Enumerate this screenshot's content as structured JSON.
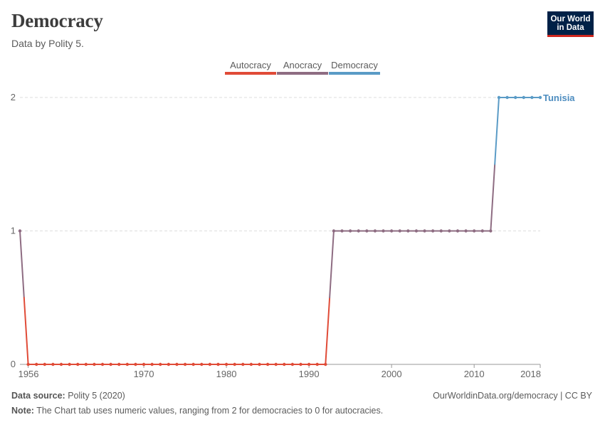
{
  "header": {
    "title": "Democracy",
    "subtitle": "Data by Polity 5."
  },
  "logo": {
    "line1": "Our World",
    "line2": "in Data"
  },
  "colors": {
    "autocracy": "#e04b37",
    "anocracy": "#8e6c82",
    "democracy": "#5a9bc6",
    "grid": "#dddddd",
    "axis": "#999999"
  },
  "chart_data": {
    "type": "line",
    "title": "Democracy",
    "xlabel": "",
    "ylabel": "",
    "xlim": [
      1955,
      2018
    ],
    "ylim": [
      0,
      2
    ],
    "x_ticks": [
      1956,
      1970,
      1980,
      1990,
      2000,
      2010,
      2018
    ],
    "y_ticks": [
      0,
      1,
      2
    ],
    "legend": [
      {
        "name": "Autocracy",
        "min": 0,
        "max": 0.5
      },
      {
        "name": "Anocracy",
        "min": 0.5,
        "max": 1.5
      },
      {
        "name": "Democracy",
        "min": 1.5,
        "max": 2
      }
    ],
    "series": [
      {
        "name": "Tunisia",
        "x": [
          1955,
          1956,
          1957,
          1958,
          1959,
          1960,
          1961,
          1962,
          1963,
          1964,
          1965,
          1966,
          1967,
          1968,
          1969,
          1970,
          1971,
          1972,
          1973,
          1974,
          1975,
          1976,
          1977,
          1978,
          1979,
          1980,
          1981,
          1982,
          1983,
          1984,
          1985,
          1986,
          1987,
          1988,
          1989,
          1990,
          1991,
          1992,
          1993,
          1994,
          1995,
          1996,
          1997,
          1998,
          1999,
          2000,
          2001,
          2002,
          2003,
          2004,
          2005,
          2006,
          2007,
          2008,
          2009,
          2010,
          2011,
          2012,
          2013,
          2014,
          2015,
          2016,
          2017,
          2018
        ],
        "values": [
          1,
          0,
          0,
          0,
          0,
          0,
          0,
          0,
          0,
          0,
          0,
          0,
          0,
          0,
          0,
          0,
          0,
          0,
          0,
          0,
          0,
          0,
          0,
          0,
          0,
          0,
          0,
          0,
          0,
          0,
          0,
          0,
          0,
          0,
          0,
          0,
          0,
          0,
          1,
          1,
          1,
          1,
          1,
          1,
          1,
          1,
          1,
          1,
          1,
          1,
          1,
          1,
          1,
          1,
          1,
          1,
          1,
          1,
          2,
          2,
          2,
          2,
          2,
          2
        ]
      }
    ]
  },
  "footer": {
    "source_label": "Data source:",
    "source_value": "Polity 5 (2020)",
    "note_label": "Note:",
    "note_value": "The Chart tab uses numeric values, ranging from 2 for democracies to 0 for autocracies.",
    "link": "OurWorldinData.org/democracy | CC BY"
  }
}
